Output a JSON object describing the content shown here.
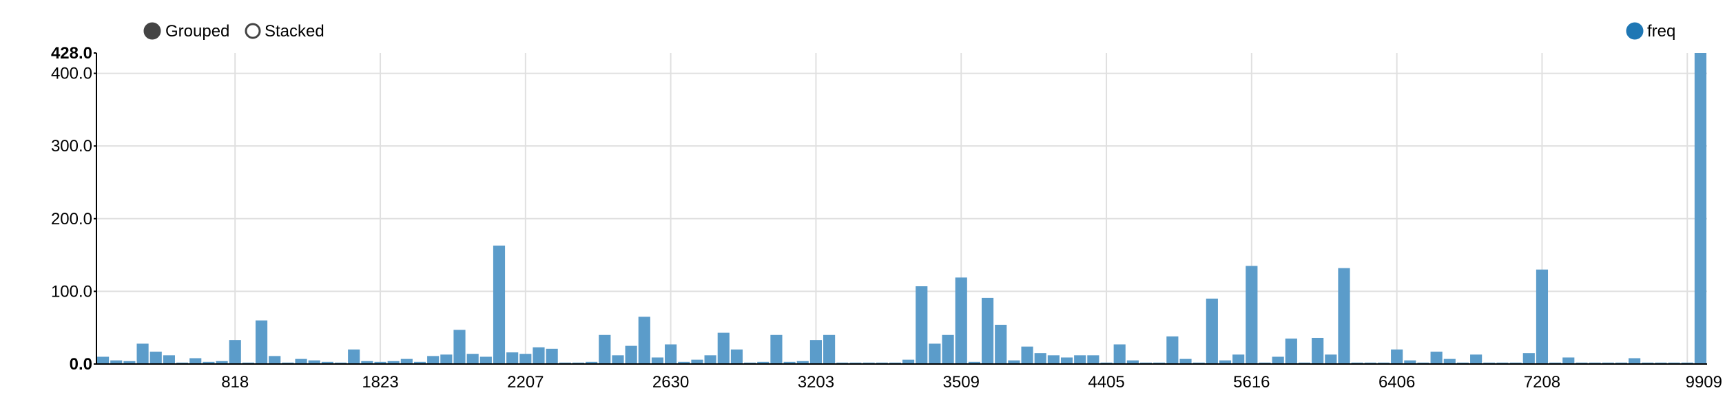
{
  "controls": {
    "grouped_label": "Grouped",
    "stacked_label": "Stacked",
    "selected": "Grouped"
  },
  "legend": {
    "items": [
      {
        "label": "freq",
        "color": "#1f77b4"
      }
    ]
  },
  "colors": {
    "bar": "#5b9cca",
    "legend_dot": "#1f77b4",
    "radio_dot": "#444444",
    "grid": "#e0e0e0"
  },
  "chart_data": {
    "type": "bar",
    "series": [
      {
        "name": "freq",
        "values": [
          10,
          5,
          4,
          28,
          17,
          12,
          2,
          8,
          3,
          4,
          33,
          2,
          60,
          11,
          2,
          7,
          5,
          3,
          2,
          20,
          4,
          3,
          4,
          7,
          3,
          11,
          13,
          47,
          14,
          10,
          163,
          16,
          14,
          23,
          21,
          2,
          2,
          3,
          40,
          12,
          25,
          65,
          9,
          27,
          3,
          6,
          12,
          43,
          20,
          2,
          3,
          40,
          3,
          4,
          33,
          40,
          2,
          2,
          2,
          2,
          2,
          6,
          107,
          28,
          40,
          119,
          3,
          91,
          54,
          5,
          24,
          15,
          12,
          9,
          12,
          12,
          2,
          27,
          5,
          2,
          2,
          38,
          7,
          2,
          90,
          5,
          13,
          135,
          2,
          10,
          35,
          2,
          36,
          13,
          132,
          2,
          2,
          2,
          20,
          5,
          2,
          17,
          7,
          2,
          13,
          2,
          2,
          2,
          15,
          130,
          2,
          9,
          2,
          2,
          2,
          2,
          8,
          2,
          2,
          2,
          2,
          428
        ]
      }
    ],
    "x_tick_labels": [
      "818",
      "1823",
      "2207",
      "2630",
      "3203",
      "3509",
      "4405",
      "5616",
      "6406",
      "7208",
      "9909"
    ],
    "x_tick_bins": [
      10,
      21,
      32,
      43,
      54,
      65,
      76,
      87,
      98,
      109,
      120
    ],
    "y_tick_labels": [
      "0.0",
      "100.0",
      "200.0",
      "300.0",
      "400.0",
      "428.0"
    ],
    "y_tick_values": [
      0,
      100,
      200,
      300,
      400,
      428
    ],
    "ylim": [
      0,
      428
    ],
    "grid": true,
    "legend_position": "top-right",
    "title": "",
    "xlabel": "",
    "ylabel": ""
  }
}
